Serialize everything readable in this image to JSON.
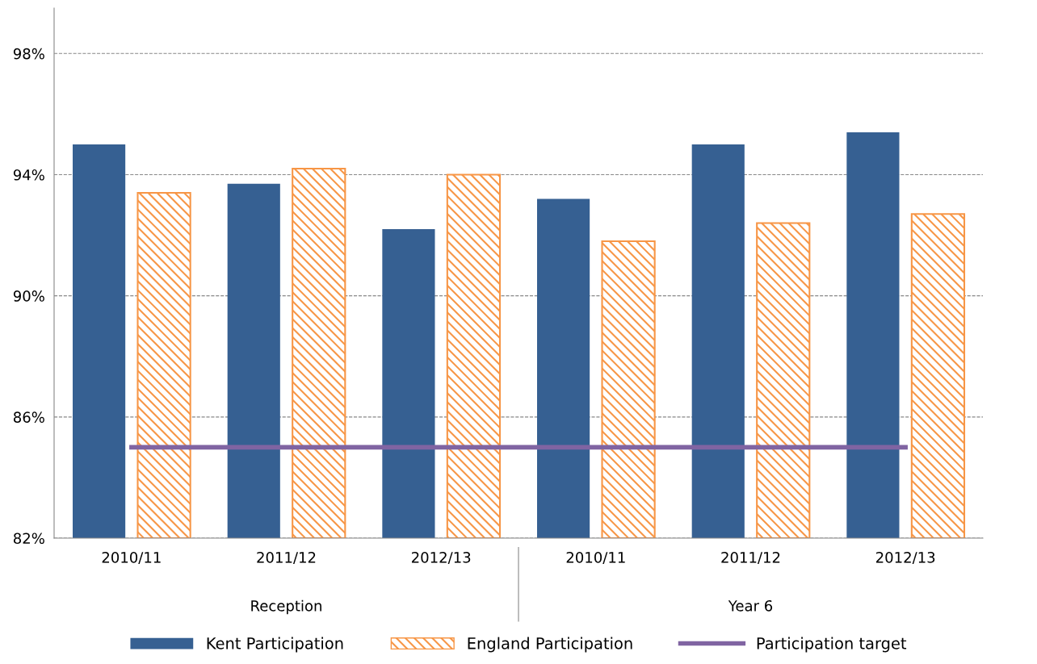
{
  "chart_data": {
    "type": "bar",
    "categories": [
      "2010/11",
      "2011/12",
      "2012/13",
      "2010/11",
      "2011/12",
      "2012/13"
    ],
    "series": [
      {
        "name": "Kent Participation",
        "color": "#366092",
        "values": [
          95.0,
          93.7,
          92.2,
          93.2,
          95.0,
          95.4
        ]
      },
      {
        "name": "England Participation",
        "color": "#f79646",
        "values": [
          93.4,
          94.2,
          94.0,
          91.8,
          92.4,
          92.7
        ]
      },
      {
        "name": "Participation target",
        "type": "line",
        "color": "#8064a2",
        "values": [
          85.0,
          85.0,
          85.0,
          85.0,
          85.0,
          85.0
        ]
      }
    ],
    "annotations": [
      "Reception",
      "Year 6"
    ],
    "ylim": [
      82,
      99.5
    ],
    "yticks": [
      {
        "value": 82,
        "label": "82%"
      },
      {
        "value": 86,
        "label": "86%"
      },
      {
        "value": 90,
        "label": "90%"
      },
      {
        "value": 94,
        "label": "94%"
      },
      {
        "value": 98,
        "label": "98%"
      }
    ],
    "grid": "y",
    "legend": "bottom"
  }
}
